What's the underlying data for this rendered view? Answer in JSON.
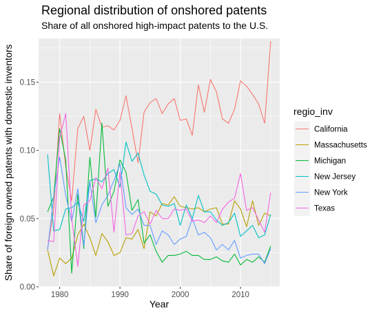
{
  "chart_data": {
    "type": "line",
    "title": "Regional distribution of onshored patents",
    "subtitle": "Share of all onshored high-impact patents to the U.S.",
    "xlabel": "Year",
    "ylabel": "Share of foreign owned patents with domestic inventors",
    "xlim": [
      1976.5,
      2016.5
    ],
    "ylim": [
      0,
      0.182
    ],
    "x_ticks": [
      1980,
      1990,
      2000,
      2010
    ],
    "x_tick_labels": [
      "1980",
      "1990",
      "2000",
      "2010"
    ],
    "y_ticks": [
      0,
      0.05,
      0.1,
      0.15
    ],
    "y_tick_labels": [
      "0.00",
      "0.05",
      "0.10",
      "0.15"
    ],
    "grid": true,
    "legend": {
      "title": "regio_inv",
      "placement": "right"
    },
    "x": [
      1978,
      1979,
      1980,
      1981,
      1982,
      1983,
      1984,
      1985,
      1986,
      1987,
      1988,
      1989,
      1990,
      1991,
      1992,
      1993,
      1994,
      1995,
      1996,
      1997,
      1998,
      1999,
      2000,
      2001,
      2002,
      2003,
      2004,
      2005,
      2006,
      2007,
      2008,
      2009,
      2010,
      2011,
      2012,
      2013,
      2014,
      2015
    ],
    "series": [
      {
        "name": "California",
        "color": "#F8766D",
        "values": [
          0.028,
          0.056,
          0.127,
          0.088,
          0.063,
          0.116,
          0.125,
          0.1,
          0.13,
          0.117,
          0.118,
          0.115,
          0.122,
          0.14,
          0.116,
          0.091,
          0.128,
          0.135,
          0.138,
          0.127,
          0.134,
          0.138,
          0.122,
          0.123,
          0.111,
          0.148,
          0.128,
          0.152,
          0.143,
          0.123,
          0.12,
          0.13,
          0.151,
          0.147,
          0.141,
          0.134,
          0.12,
          0.18
        ]
      },
      {
        "name": "Massachusetts",
        "color": "#B79F00",
        "values": [
          0.027,
          0.008,
          0.021,
          0.017,
          0.021,
          0.038,
          0.046,
          0.036,
          0.023,
          0.039,
          0.033,
          0.023,
          0.025,
          0.036,
          0.035,
          0.042,
          0.028,
          0.055,
          0.052,
          0.061,
          0.06,
          0.066,
          0.059,
          0.058,
          0.057,
          0.058,
          0.055,
          0.057,
          0.058,
          0.046,
          0.046,
          0.063,
          0.057,
          0.044,
          0.063,
          0.045,
          0.054,
          0.052
        ]
      },
      {
        "name": "Michigan",
        "color": "#00BA38",
        "values": [
          0.055,
          0.066,
          0.116,
          0.093,
          0.01,
          0.068,
          0.028,
          0.095,
          0.051,
          0.12,
          0.059,
          0.07,
          0.093,
          0.084,
          0.056,
          0.064,
          0.032,
          0.038,
          0.026,
          0.018,
          0.023,
          0.023,
          0.024,
          0.026,
          0.023,
          0.023,
          0.02,
          0.02,
          0.022,
          0.019,
          0.018,
          0.024,
          0.016,
          0.02,
          0.018,
          0.022,
          0.018,
          0.03
        ]
      },
      {
        "name": "New Jersey",
        "color": "#00BFC4",
        "values": [
          0.097,
          0.041,
          0.042,
          0.057,
          0.058,
          0.062,
          0.048,
          0.078,
          0.079,
          0.077,
          0.083,
          0.086,
          0.073,
          0.106,
          0.092,
          0.098,
          0.082,
          0.07,
          0.068,
          0.06,
          0.059,
          0.061,
          0.045,
          0.06,
          0.05,
          0.067,
          0.055,
          0.055,
          0.049,
          0.045,
          0.047,
          0.054,
          0.037,
          0.041,
          0.045,
          0.036,
          0.038,
          0.053
        ]
      },
      {
        "name": "New York",
        "color": "#619CFF",
        "values": [
          0.027,
          0.066,
          0.095,
          0.067,
          0.048,
          0.072,
          0.03,
          0.077,
          0.047,
          0.06,
          0.067,
          0.078,
          0.09,
          0.058,
          0.053,
          0.057,
          0.045,
          0.045,
          0.031,
          0.041,
          0.038,
          0.031,
          0.035,
          0.037,
          0.05,
          0.038,
          0.04,
          0.036,
          0.027,
          0.031,
          0.027,
          0.034,
          0.021,
          0.023,
          0.024,
          0.024,
          0.017,
          0.028
        ]
      },
      {
        "name": "Texas",
        "color": "#F564E3",
        "values": [
          0.034,
          0.033,
          0.109,
          0.127,
          0.05,
          0.015,
          0.06,
          0.063,
          0.08,
          0.072,
          0.087,
          0.04,
          0.084,
          0.038,
          0.039,
          0.052,
          0.055,
          0.046,
          0.056,
          0.05,
          0.05,
          0.057,
          0.056,
          0.057,
          0.048,
          0.049,
          0.047,
          0.052,
          0.047,
          0.057,
          0.062,
          0.065,
          0.083,
          0.056,
          0.058,
          0.049,
          0.04,
          0.069
        ]
      }
    ]
  }
}
